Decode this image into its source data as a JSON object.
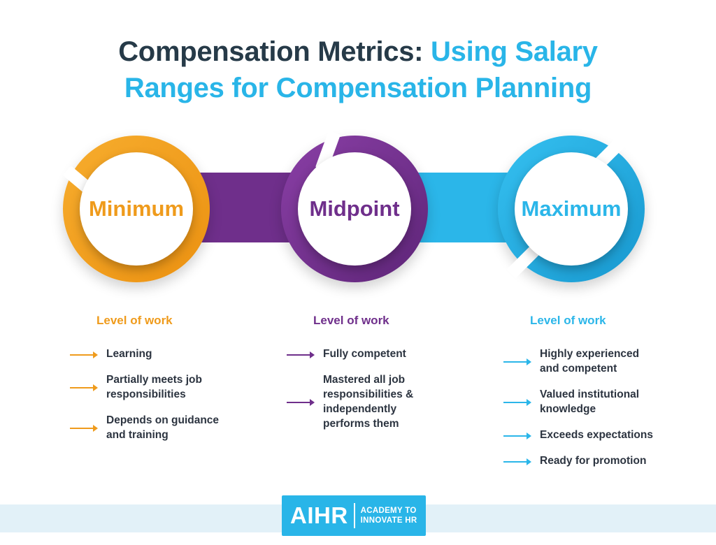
{
  "title": {
    "part1": "Compensation Metrics: ",
    "part2": "Using Salary",
    "part3": "Ranges for Compensation Planning"
  },
  "colors": {
    "orange": "#ef9b1c",
    "purple": "#6f2f8b",
    "blue": "#2bb6e9",
    "dark": "#263a48"
  },
  "stages": [
    {
      "label": "Minimum",
      "heading": "Level of work",
      "items": [
        "Learning",
        "Partially meets job responsibilities",
        "Depends on guidance and training"
      ]
    },
    {
      "label": "Midpoint",
      "heading": "Level of work",
      "items": [
        "Fully competent",
        "Mastered all job responsibilities & independently performs them"
      ]
    },
    {
      "label": "Maximum",
      "heading": "Level of work",
      "items": [
        "Highly experienced and competent",
        "Valued institutional knowledge",
        "Exceeds expectations",
        "Ready for promotion"
      ]
    }
  ],
  "logo": {
    "main": "AIHR",
    "line1": "ACADEMY TO",
    "line2": "INNOVATE HR"
  }
}
